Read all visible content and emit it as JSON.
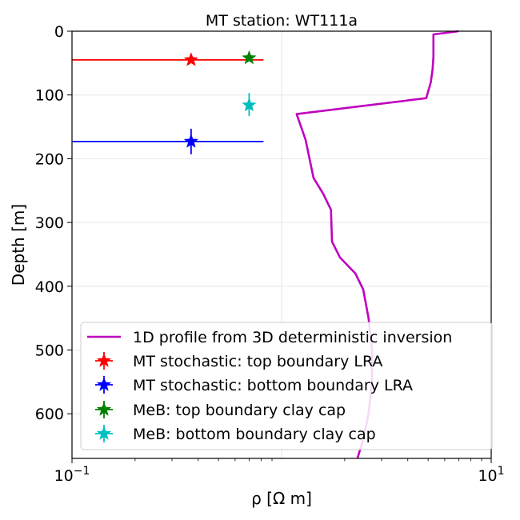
{
  "chart_data": {
    "type": "line",
    "title": "MT station: WT111a",
    "xlabel": "ρ [Ω m]",
    "ylabel": "Depth [m]",
    "x_scale": "log",
    "xlim": [
      0.1,
      10
    ],
    "ylim": [
      670,
      0
    ],
    "y_ticks": [
      0,
      100,
      200,
      300,
      400,
      500,
      600
    ],
    "x_ticks": [
      {
        "base": "10",
        "exp": "−1",
        "value": 0.1
      },
      {
        "base": "10",
        "exp": "1",
        "value": 10
      }
    ],
    "grid": true,
    "legend_position": "lower right",
    "colors": {
      "profile": "#bf00bf",
      "top_lra": "#ff0000",
      "bottom_lra": "#0000ff",
      "top_clay": "#008000",
      "bottom_clay": "#00bfbf"
    },
    "profile": {
      "name": "1D profile from 3D deterministic inversion",
      "x": [
        7.0,
        5.3,
        5.3,
        5.25,
        5.15,
        4.9,
        1.18,
        1.3,
        1.42,
        1.58,
        1.72,
        1.74,
        1.9,
        2.25,
        2.45,
        2.6,
        2.7,
        2.7,
        2.6,
        2.45,
        2.3
      ],
      "y": [
        0,
        5,
        40,
        60,
        80,
        105,
        130,
        170,
        230,
        255,
        280,
        330,
        355,
        380,
        405,
        450,
        500,
        550,
        600,
        640,
        670
      ]
    },
    "markers": [
      {
        "name": "MT stochastic: top boundary LRA",
        "x": 0.37,
        "y": 45,
        "xerr": [
          0.1,
          0.82
        ],
        "yerr": [
          44,
          47
        ],
        "color_key": "top_lra"
      },
      {
        "name": "MT stochastic: bottom boundary LRA",
        "x": 0.37,
        "y": 173,
        "xerr": [
          0.1,
          0.82
        ],
        "yerr": [
          153,
          193
        ],
        "color_key": "bottom_lra"
      },
      {
        "name": "MeB: top boundary clay cap",
        "x": 0.7,
        "y": 42,
        "xerr": [
          0.68,
          0.72
        ],
        "yerr": [
          37,
          47
        ],
        "color_key": "top_clay"
      },
      {
        "name": "MeB: bottom boundary clay cap",
        "x": 0.7,
        "y": 116,
        "xerr": [
          0.68,
          0.72
        ],
        "yerr": [
          97,
          133
        ],
        "color_key": "bottom_clay"
      }
    ]
  }
}
